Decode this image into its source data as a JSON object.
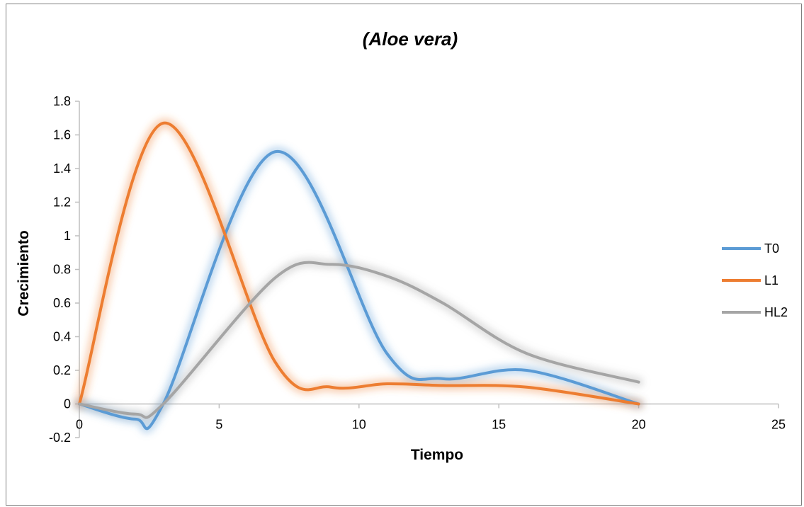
{
  "chart_data": {
    "type": "line",
    "title": "(Aloe vera)",
    "xlabel": "Tiempo",
    "ylabel": "Crecimiento",
    "xlim": [
      0,
      25
    ],
    "ylim": [
      -0.2,
      1.8
    ],
    "x_ticks": [
      "0",
      "5",
      "10",
      "15",
      "20",
      "25"
    ],
    "y_ticks": [
      "-0.2",
      "0",
      "0.2",
      "0.4",
      "0.6",
      "0.8",
      "1",
      "1.2",
      "1.4",
      "1.6",
      "1.8"
    ],
    "smooth": true,
    "grid": false,
    "legend_position": "right",
    "series": [
      {
        "name": "T0",
        "color": "#5b9bd5",
        "x": [
          0,
          2,
          3,
          7,
          11,
          13,
          16,
          20
        ],
        "y": [
          0,
          -0.09,
          0,
          1.5,
          0.3,
          0.15,
          0.2,
          0
        ]
      },
      {
        "name": "L1",
        "color": "#ed7d31",
        "x": [
          0,
          3,
          7,
          9,
          11,
          13,
          16,
          20
        ],
        "y": [
          0,
          1.67,
          0.25,
          0.1,
          0.12,
          0.11,
          0.1,
          0
        ]
      },
      {
        "name": "HL2",
        "color": "#a5a5a5",
        "x": [
          0,
          2,
          3,
          7,
          9,
          11,
          13,
          16,
          20
        ],
        "y": [
          0,
          -0.06,
          0,
          0.75,
          0.83,
          0.76,
          0.6,
          0.3,
          0.13
        ]
      }
    ]
  }
}
